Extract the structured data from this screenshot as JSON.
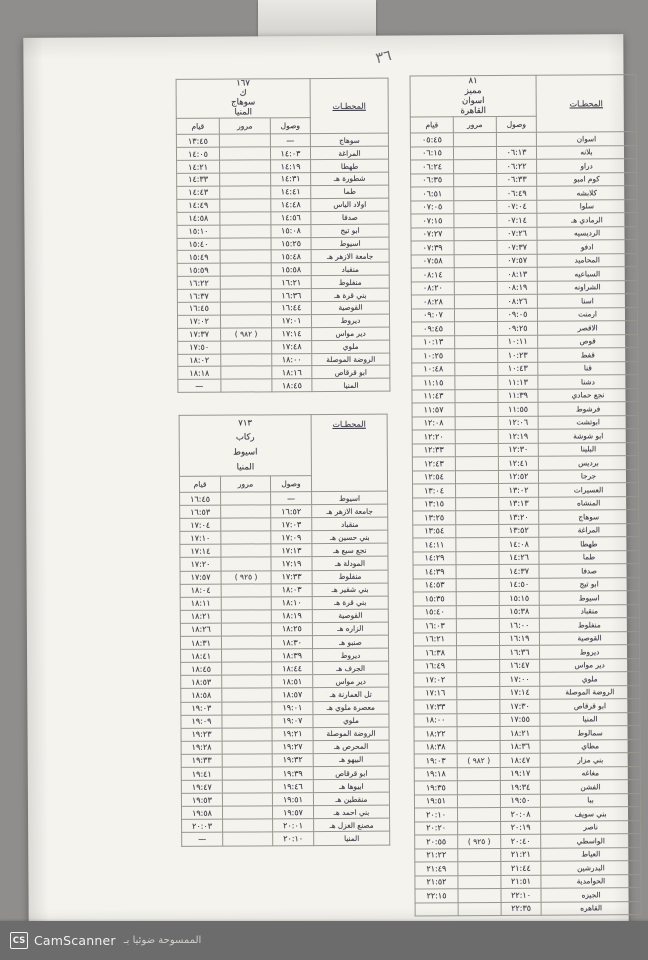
{
  "page": {
    "handwritten_note": "٣٦",
    "watermark": {
      "logo": "CS",
      "brand": "CamScanner",
      "arabic": "الممسوحة ضوئيا بـ"
    }
  },
  "columns": {
    "stations": "المحطـات",
    "arrival": "وصول",
    "passing": "مرور",
    "departure": "قيام"
  },
  "tables": [
    {
      "id": "train-167",
      "title_lines": [
        "١٦٧",
        "ك",
        "سوهاج",
        "المنيا"
      ],
      "rows": [
        {
          "station": "سوهاج",
          "arr": "—",
          "pass": "",
          "dep": "١٣:٤٥"
        },
        {
          "station": "المراغة",
          "arr": "١٤:٠٣",
          "pass": "",
          "dep": "١٤:٠٥"
        },
        {
          "station": "طهطا",
          "arr": "١٤:١٩",
          "pass": "",
          "dep": "١٤:٢١"
        },
        {
          "station": "شطورة هـ",
          "arr": "١٤:٣١",
          "pass": "",
          "dep": "١٤:٣٣"
        },
        {
          "station": "طما",
          "arr": "١٤:٤١",
          "pass": "",
          "dep": "١٤:٤٣"
        },
        {
          "station": "اولاد الياس",
          "arr": "١٤:٤٨",
          "pass": "",
          "dep": "١٤:٤٩"
        },
        {
          "station": "صدفا",
          "arr": "١٤:٥٦",
          "pass": "",
          "dep": "١٤:٥٨"
        },
        {
          "station": "ابو تيج",
          "arr": "١٥:٠٨",
          "pass": "",
          "dep": "١٥:١٠"
        },
        {
          "station": "اسيوط",
          "arr": "١٥:٢٥",
          "pass": "",
          "dep": "١٥:٤٠"
        },
        {
          "station": "جامعة الازهر هـ",
          "arr": "١٥:٤٨",
          "pass": "",
          "dep": "١٥:٤٩"
        },
        {
          "station": "منقباد",
          "arr": "١٥:٥٨",
          "pass": "",
          "dep": "١٥:٥٩"
        },
        {
          "station": "منفلوط",
          "arr": "١٦:٢١",
          "pass": "",
          "dep": "١٦:٢٢"
        },
        {
          "station": "بني قرة هـ",
          "arr": "١٦:٣٦",
          "pass": "",
          "dep": "١٦:٣٧"
        },
        {
          "station": "القوصية",
          "arr": "١٦:٤٤",
          "pass": "",
          "dep": "١٦:٤٥"
        },
        {
          "station": "ديروط",
          "arr": "١٧:٠١",
          "pass": "",
          "dep": "١٧:٠٢"
        },
        {
          "station": "دير مواس",
          "arr": "١٧:١٤",
          "pass": "( ٩٨٢ )",
          "dep": "١٧:٣٧"
        },
        {
          "station": "ملوي",
          "arr": "١٧:٤٨",
          "pass": "",
          "dep": "١٧:٥٠"
        },
        {
          "station": "الروضة الموصلة",
          "arr": "١٨:٠٠",
          "pass": "",
          "dep": "١٨:٠٢"
        },
        {
          "station": "ابو قرقاص",
          "arr": "١٨:١٦",
          "pass": "",
          "dep": "١٨:١٨"
        },
        {
          "station": "المنيا",
          "arr": "١٨:٤٥",
          "pass": "",
          "dep": "—"
        }
      ]
    },
    {
      "id": "train-713",
      "title_lines": [
        "٧١٣",
        "ركاب",
        "اسيوط",
        "المنيا"
      ],
      "rows": [
        {
          "station": "اسيوط",
          "arr": "—",
          "pass": "",
          "dep": "١٦:٤٥"
        },
        {
          "station": "جامعة الازهر هـ",
          "arr": "١٦:٥٢",
          "pass": "",
          "dep": "١٦:٥٣"
        },
        {
          "station": "منقباد",
          "arr": "١٧:٠٣",
          "pass": "",
          "dep": "١٧:٠٤"
        },
        {
          "station": "بني حسين هـ",
          "arr": "١٧:٠٩",
          "pass": "",
          "dep": "١٧:١٠"
        },
        {
          "station": "نجع سبع هـ",
          "arr": "١٧:١٣",
          "pass": "",
          "dep": "١٧:١٤"
        },
        {
          "station": "المودلة هـ",
          "arr": "١٧:١٩",
          "pass": "",
          "dep": "١٧:٢٠"
        },
        {
          "station": "منفلوط",
          "arr": "١٧:٣٣",
          "pass": "( ٩٢٥ )",
          "dep": "١٧:٥٧"
        },
        {
          "station": "بني شقير هـ",
          "arr": "١٨:٠٣",
          "pass": "",
          "dep": "١٨:٠٤"
        },
        {
          "station": "بني قرة هـ",
          "arr": "١٨:١٠",
          "pass": "",
          "dep": "١٨:١١"
        },
        {
          "station": "القوصية",
          "arr": "١٨:١٩",
          "pass": "",
          "dep": "١٨:٢١"
        },
        {
          "station": "الزاره هـ",
          "arr": "١٨:٢٥",
          "pass": "",
          "dep": "١٨:٢٦"
        },
        {
          "station": "صنبو هـ",
          "arr": "١٨:٣٠",
          "pass": "",
          "dep": "١٨:٣١"
        },
        {
          "station": "ديروط",
          "arr": "١٨:٣٩",
          "pass": "",
          "dep": "١٨:٤١"
        },
        {
          "station": "الجرف هـ",
          "arr": "١٨:٤٤",
          "pass": "",
          "dep": "١٨:٤٥"
        },
        {
          "station": "دير مواس",
          "arr": "١٨:٥١",
          "pass": "",
          "dep": "١٨:٥٣"
        },
        {
          "station": "تل العمارنة هـ",
          "arr": "١٨:٥٧",
          "pass": "",
          "dep": "١٨:٥٨"
        },
        {
          "station": "معصرة ملوي هـ",
          "arr": "١٩:٠١",
          "pass": "",
          "dep": "١٩:٠٣"
        },
        {
          "station": "ملوي",
          "arr": "١٩:٠٧",
          "pass": "",
          "dep": "١٩:٠٩"
        },
        {
          "station": "الروضة الموصلة",
          "arr": "١٩:٢١",
          "pass": "",
          "dep": "١٩:٢٣"
        },
        {
          "station": "المحرص هـ",
          "arr": "١٩:٢٧",
          "pass": "",
          "dep": "١٩:٢٨"
        },
        {
          "station": "البيهو هـ",
          "arr": "١٩:٣٢",
          "pass": "",
          "dep": "١٩:٣٣"
        },
        {
          "station": "ابو قرقاص",
          "arr": "١٩:٣٩",
          "pass": "",
          "dep": "١٩:٤١"
        },
        {
          "station": "ابيوها هـ",
          "arr": "١٩:٤٦",
          "pass": "",
          "dep": "١٩:٤٧"
        },
        {
          "station": "منقطين هـ",
          "arr": "١٩:٥١",
          "pass": "",
          "dep": "١٩:٥٣"
        },
        {
          "station": "بني احمد هـ",
          "arr": "١٩:٥٧",
          "pass": "",
          "dep": "١٩:٥٨"
        },
        {
          "station": "مصنع الغزل هـ",
          "arr": "٢٠:٠١",
          "pass": "",
          "dep": "٢٠:٠٣"
        },
        {
          "station": "المنيا",
          "arr": "٢٠:١٠",
          "pass": "",
          "dep": "—"
        }
      ]
    },
    {
      "id": "train-81",
      "title_lines": [
        "٨١",
        "مميز",
        "اسوان",
        "القاهرة"
      ],
      "rows": [
        {
          "station": "اسوان",
          "arr": "",
          "pass": "",
          "dep": "٠٥:٤٥"
        },
        {
          "station": "بلانه",
          "arr": "٠٦:١٣",
          "pass": "",
          "dep": "٠٦:١٥"
        },
        {
          "station": "دراو",
          "arr": "٠٦:٢٢",
          "pass": "",
          "dep": "٠٦:٢٤"
        },
        {
          "station": "كوم امبو",
          "arr": "٠٦:٣٣",
          "pass": "",
          "dep": "٠٦:٣٥"
        },
        {
          "station": "كلابشه",
          "arr": "٠٦:٤٩",
          "pass": "",
          "dep": "٠٦:٥١"
        },
        {
          "station": "سلوا",
          "arr": "٠٧:٠٤",
          "pass": "",
          "dep": "٠٧:٠٥"
        },
        {
          "station": "الرمادي هـ",
          "arr": "٠٧:١٤",
          "pass": "",
          "dep": "٠٧:١٥"
        },
        {
          "station": "الرديسيه",
          "arr": "٠٧:٢٦",
          "pass": "",
          "dep": "٠٧:٢٧"
        },
        {
          "station": "ادفو",
          "arr": "٠٧:٣٧",
          "pass": "",
          "dep": "٠٧:٣٩"
        },
        {
          "station": "المحاميد",
          "arr": "٠٧:٥٧",
          "pass": "",
          "dep": "٠٧:٥٨"
        },
        {
          "station": "السباعيه",
          "arr": "٠٨:١٣",
          "pass": "",
          "dep": "٠٨:١٤"
        },
        {
          "station": "الشراونه",
          "arr": "٠٨:١٩",
          "pass": "",
          "dep": "٠٨:٢٠"
        },
        {
          "station": "اسنا",
          "arr": "٠٨:٢٦",
          "pass": "",
          "dep": "٠٨:٢٨"
        },
        {
          "station": "ارمنت",
          "arr": "٠٩:٠٥",
          "pass": "",
          "dep": "٠٩:٠٧"
        },
        {
          "station": "الاقصر",
          "arr": "٠٩:٢٥",
          "pass": "",
          "dep": "٠٩:٤٥"
        },
        {
          "station": "قوص",
          "arr": "١٠:١١",
          "pass": "",
          "dep": "١٠:١٣"
        },
        {
          "station": "قفط",
          "arr": "١٠:٢٣",
          "pass": "",
          "dep": "١٠:٢٥"
        },
        {
          "station": "قنا",
          "arr": "١٠:٤٣",
          "pass": "",
          "dep": "١٠:٤٨"
        },
        {
          "station": "دشنا",
          "arr": "١١:١٣",
          "pass": "",
          "dep": "١١:١٥"
        },
        {
          "station": "نجع حمادي",
          "arr": "١١:٣٩",
          "pass": "",
          "dep": "١١:٤٣"
        },
        {
          "station": "فرشوط",
          "arr": "١١:٥٥",
          "pass": "",
          "dep": "١١:٥٧"
        },
        {
          "station": "ابوتشت",
          "arr": "١٢:٠٦",
          "pass": "",
          "dep": "١٢:٠٨"
        },
        {
          "station": "ابو شوشة",
          "arr": "١٢:١٩",
          "pass": "",
          "dep": "١٢:٢٠"
        },
        {
          "station": "البلينا",
          "arr": "١٢:٣٠",
          "pass": "",
          "dep": "١٢:٣٣"
        },
        {
          "station": "برديس",
          "arr": "١٢:٤١",
          "pass": "",
          "dep": "١٢:٤٣"
        },
        {
          "station": "جرجا",
          "arr": "١٢:٥٢",
          "pass": "",
          "dep": "١٢:٥٤"
        },
        {
          "station": "العسيرات",
          "arr": "١٣:٠٢",
          "pass": "",
          "dep": "١٣:٠٤"
        },
        {
          "station": "المنشاه",
          "arr": "١٣:١٣",
          "pass": "",
          "dep": "١٣:١٥"
        },
        {
          "station": "سوهاج",
          "arr": "١٣:٢٠",
          "pass": "",
          "dep": "١٣:٢٥"
        },
        {
          "station": "المراغة",
          "arr": "١٣:٥٢",
          "pass": "",
          "dep": "١٣:٥٤"
        },
        {
          "station": "طهطا",
          "arr": "١٤:٠٨",
          "pass": "",
          "dep": "١٤:١١"
        },
        {
          "station": "طما",
          "arr": "١٤:٢٦",
          "pass": "",
          "dep": "١٤:٢٩"
        },
        {
          "station": "صدفا",
          "arr": "١٤:٣٧",
          "pass": "",
          "dep": "١٤:٣٩"
        },
        {
          "station": "ابو تيج",
          "arr": "١٤:٥٠",
          "pass": "",
          "dep": "١٤:٥٣"
        },
        {
          "station": "اسيوط",
          "arr": "١٥:١٥",
          "pass": "",
          "dep": "١٥:٣٥"
        },
        {
          "station": "منقباد",
          "arr": "١٥:٣٨",
          "pass": "",
          "dep": "١٥:٤٠"
        },
        {
          "station": "منفلوط",
          "arr": "١٦:٠٠",
          "pass": "",
          "dep": "١٦:٠٣"
        },
        {
          "station": "القوصية",
          "arr": "١٦:١٩",
          "pass": "",
          "dep": "١٦:٢١"
        },
        {
          "station": "ديروط",
          "arr": "١٦:٣٦",
          "pass": "",
          "dep": "١٦:٣٨"
        },
        {
          "station": "دير مواس",
          "arr": "١٦:٤٧",
          "pass": "",
          "dep": "١٦:٤٩"
        },
        {
          "station": "ملوي",
          "arr": "١٧:٠٠",
          "pass": "",
          "dep": "١٧:٠٢"
        },
        {
          "station": "الروضة الموصلة",
          "arr": "١٧:١٤",
          "pass": "",
          "dep": "١٧:١٦"
        },
        {
          "station": "ابو قرقاص",
          "arr": "١٧:٣٠",
          "pass": "",
          "dep": "١٧:٣٣"
        },
        {
          "station": "المنيا",
          "arr": "١٧:٥٥",
          "pass": "",
          "dep": "١٨:٠٠"
        },
        {
          "station": "سمالوط",
          "arr": "١٨:٢١",
          "pass": "",
          "dep": "١٨:٢٢"
        },
        {
          "station": "مطاي",
          "arr": "١٨:٣٦",
          "pass": "",
          "dep": "١٨:٣٨"
        },
        {
          "station": "بني مزار",
          "arr": "١٨:٤٧",
          "pass": "( ٩٨٢ )",
          "dep": "١٩:٠٣"
        },
        {
          "station": "مغاغه",
          "arr": "١٩:١٧",
          "pass": "",
          "dep": "١٩:١٨"
        },
        {
          "station": "الفشن",
          "arr": "١٩:٣٤",
          "pass": "",
          "dep": "١٩:٣٥"
        },
        {
          "station": "ببا",
          "arr": "١٩:٥٠",
          "pass": "",
          "dep": "١٩:٥١"
        },
        {
          "station": "بني سويف",
          "arr": "٢٠:٠٨",
          "pass": "",
          "dep": "٢٠:١٠"
        },
        {
          "station": "ناصر",
          "arr": "٢٠:١٩",
          "pass": "",
          "dep": "٢٠:٢٠"
        },
        {
          "station": "الواسطي",
          "arr": "٢٠:٤٠",
          "pass": "( ٩٢٥ )",
          "dep": "٢٠:٥٥"
        },
        {
          "station": "العياط",
          "arr": "٢١:٢١",
          "pass": "",
          "dep": "٢١:٢٢"
        },
        {
          "station": "البدرشين",
          "arr": "٢١:٤٤",
          "pass": "",
          "dep": "٢١:٤٩"
        },
        {
          "station": "الحوامدية",
          "arr": "٢١:٥١",
          "pass": "",
          "dep": "٢١:٥٢"
        },
        {
          "station": "الجيزه",
          "arr": "٢٢:١٠",
          "pass": "",
          "dep": "٢٢:١٥"
        },
        {
          "station": "القاهره",
          "arr": "٢٢:٣٥",
          "pass": "",
          "dep": ""
        }
      ]
    }
  ]
}
